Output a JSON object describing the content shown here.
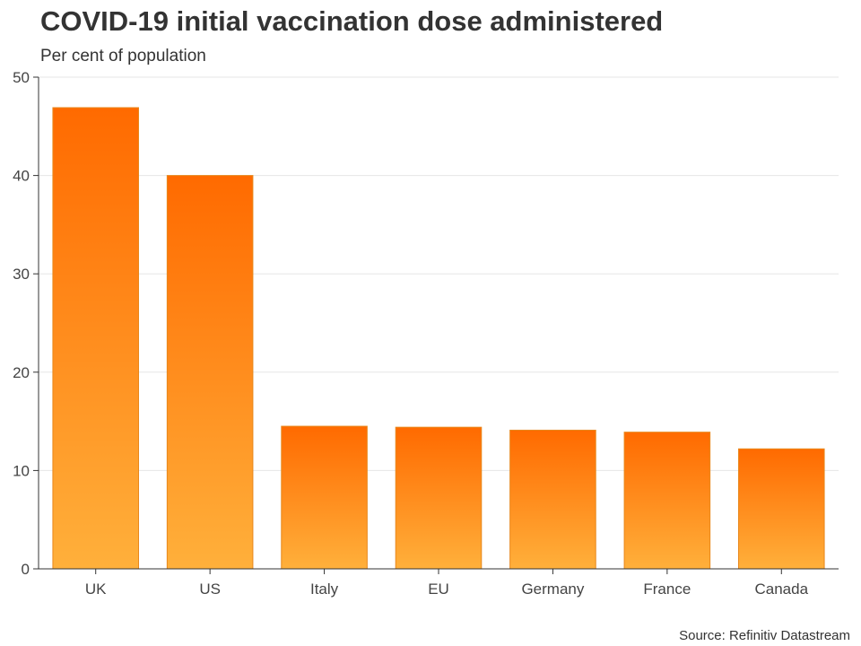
{
  "chart_data": {
    "type": "bar",
    "title": "COVID-19 initial vaccination dose administered",
    "subtitle": "Per cent of population",
    "source": "Source: Refinitiv Datastream",
    "categories": [
      "UK",
      "US",
      "Italy",
      "EU",
      "Germany",
      "France",
      "Canada"
    ],
    "values": [
      46.9,
      40.0,
      14.5,
      14.4,
      14.1,
      13.9,
      12.2
    ],
    "xlabel": "",
    "ylabel": "",
    "ylim": [
      0,
      50
    ],
    "yticks": [
      0,
      10,
      20,
      30,
      40,
      50
    ],
    "grid": true,
    "colors": {
      "bar_top": "#ff6a00",
      "bar_bottom": "#ffb03b",
      "bar_edge": "#e8881c",
      "grid": "#e6e6e6",
      "axis": "#333333"
    }
  }
}
